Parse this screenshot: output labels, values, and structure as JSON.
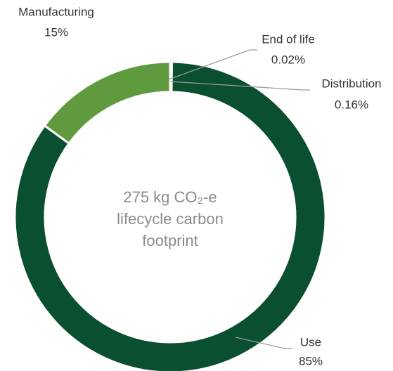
{
  "chart_data": {
    "type": "donut",
    "categories": [
      "End of life",
      "Distribution",
      "Use",
      "Manufacturing"
    ],
    "values": [
      0.02,
      0.16,
      85,
      15
    ],
    "value_labels": [
      "0.02%",
      "0.16%",
      "85%",
      "15%"
    ],
    "colors": [
      "#8bbf5f",
      "#8bbf5f",
      "#0b4f31",
      "#5f9b3e"
    ],
    "center_text": [
      "275 kg CO₂-e",
      "lifecycle carbon",
      "footprint"
    ]
  }
}
